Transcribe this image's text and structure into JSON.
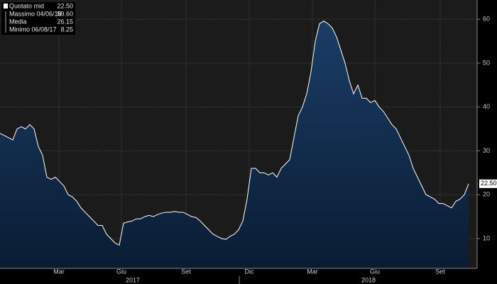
{
  "chart_data": {
    "type": "area",
    "color": "#ffffff",
    "fill": "#0f2a4a",
    "ylim": [
      3.2,
      64.4
    ],
    "yticks": [
      10,
      20,
      30,
      40,
      50,
      60
    ],
    "grid": true,
    "x_labels": [
      "Mar",
      "Giu",
      "Set",
      "Dic",
      "Mar",
      "Giu",
      "Set"
    ],
    "year_labels": [
      "2017",
      "2018"
    ],
    "last_value_label": "22.50",
    "legend": [
      {
        "name": "Quotato mid",
        "value": "22.50"
      },
      {
        "name": "Massimo 04/06/18",
        "value": "59.60"
      },
      {
        "name": "Media",
        "value": "26.15"
      },
      {
        "name": "Minimo 06/08/17",
        "value": "8.25"
      }
    ],
    "values": [
      34,
      33.5,
      33,
      32.5,
      35,
      35.5,
      35,
      36,
      35,
      31,
      29,
      24,
      23.5,
      24,
      23,
      22,
      20,
      19.5,
      18.5,
      17,
      16,
      15,
      14,
      13,
      13,
      11,
      10,
      9,
      8.5,
      13.5,
      13.8,
      14,
      14.5,
      14.5,
      15,
      15.3,
      15,
      15.5,
      15.8,
      16,
      16,
      16.2,
      16,
      16,
      15.5,
      15,
      14.8,
      14,
      13,
      12,
      11,
      10.5,
      10,
      9.8,
      10.5,
      11,
      12,
      14,
      19,
      26,
      26,
      25,
      25,
      24.5,
      25,
      24,
      26,
      27,
      28,
      33,
      38,
      40,
      43,
      48,
      55,
      59,
      59.6,
      59,
      58,
      56,
      53,
      50,
      46,
      43,
      45,
      42,
      42,
      41,
      41.5,
      40,
      39,
      37.5,
      36,
      35,
      33,
      31,
      29,
      26,
      24,
      22,
      20,
      19.5,
      19,
      18,
      18,
      17.5,
      17,
      18.5,
      19,
      20,
      22.5
    ]
  }
}
